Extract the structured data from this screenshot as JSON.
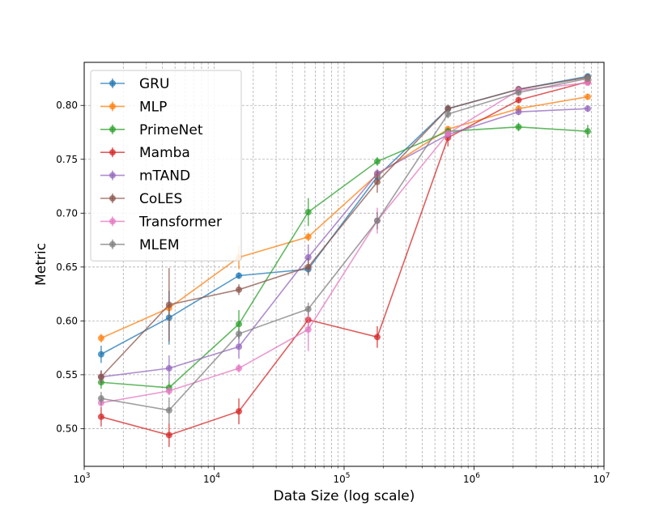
{
  "chart_data": {
    "type": "line",
    "xlabel": "Data Size (log scale)",
    "ylabel": "Metric",
    "xscale": "log",
    "xlim": [
      1000,
      10000000
    ],
    "ylim": [
      0.465,
      0.84
    ],
    "grid": true,
    "legend_position": "top-left",
    "x": [
      1350,
      4500,
      15500,
      53000,
      180000,
      630000,
      2200000,
      7500000
    ],
    "xticks": [
      {
        "value": 1000,
        "base": "10",
        "exp": "3"
      },
      {
        "value": 10000,
        "base": "10",
        "exp": "4"
      },
      {
        "value": 100000,
        "base": "10",
        "exp": "5"
      },
      {
        "value": 1000000,
        "base": "10",
        "exp": "6"
      },
      {
        "value": 10000000,
        "base": "10",
        "exp": "7"
      }
    ],
    "yticks": [
      {
        "value": 0.5,
        "label": "0.50"
      },
      {
        "value": 0.55,
        "label": "0.55"
      },
      {
        "value": 0.6,
        "label": "0.60"
      },
      {
        "value": 0.65,
        "label": "0.65"
      },
      {
        "value": 0.7,
        "label": "0.70"
      },
      {
        "value": 0.75,
        "label": "0.75"
      },
      {
        "value": 0.8,
        "label": "0.80"
      }
    ],
    "series": [
      {
        "name": "GRU",
        "color": "#1f77b4",
        "values": [
          0.569,
          0.603,
          0.642,
          0.648,
          0.734,
          0.797,
          0.815,
          0.827
        ],
        "errors": [
          0.008,
          0.025,
          0.003,
          0.004,
          0.004,
          0.003,
          0.003,
          0.002
        ]
      },
      {
        "name": "MLP",
        "color": "#ff7f0e",
        "values": [
          0.584,
          0.612,
          0.659,
          0.678,
          0.736,
          0.778,
          0.797,
          0.808
        ],
        "errors": [
          0.004,
          0.004,
          0.011,
          0.004,
          0.003,
          0.003,
          0.003,
          0.003
        ]
      },
      {
        "name": "PrimeNet",
        "color": "#2ca02c",
        "values": [
          0.543,
          0.538,
          0.597,
          0.701,
          0.748,
          0.776,
          0.78,
          0.776
        ],
        "errors": [
          0.006,
          0.006,
          0.013,
          0.013,
          0.004,
          0.003,
          0.004,
          0.006
        ]
      },
      {
        "name": "Mamba",
        "color": "#d62728",
        "values": [
          0.511,
          0.494,
          0.516,
          0.601,
          0.585,
          0.77,
          0.805,
          0.822
        ],
        "errors": [
          0.009,
          0.011,
          0.012,
          0.01,
          0.01,
          0.008,
          0.003,
          0.003
        ]
      },
      {
        "name": "mTAND",
        "color": "#9467bd",
        "values": [
          0.548,
          0.556,
          0.576,
          0.659,
          0.737,
          0.773,
          0.794,
          0.797
        ],
        "errors": [
          0.006,
          0.012,
          0.011,
          0.012,
          0.004,
          0.003,
          0.003,
          0.003
        ]
      },
      {
        "name": "CoLES",
        "color": "#8c564b",
        "values": [
          0.548,
          0.615,
          0.629,
          0.65,
          0.729,
          0.797,
          0.815,
          0.826
        ],
        "errors": [
          0.006,
          0.034,
          0.005,
          0.008,
          0.01,
          0.004,
          0.003,
          0.002
        ]
      },
      {
        "name": "Transformer",
        "color": "#e377c2",
        "values": [
          0.524,
          0.535,
          0.556,
          0.592,
          0.693,
          0.774,
          0.814,
          0.821
        ],
        "errors": [
          0.005,
          0.004,
          0.004,
          0.02,
          0.012,
          0.003,
          0.003,
          0.002
        ]
      },
      {
        "name": "MLEM",
        "color": "#7f7f7f",
        "values": [
          0.528,
          0.517,
          0.588,
          0.611,
          0.693,
          0.792,
          0.812,
          0.825
        ],
        "errors": [
          0.006,
          0.012,
          0.005,
          0.006,
          0.008,
          0.004,
          0.003,
          0.003
        ]
      }
    ]
  }
}
